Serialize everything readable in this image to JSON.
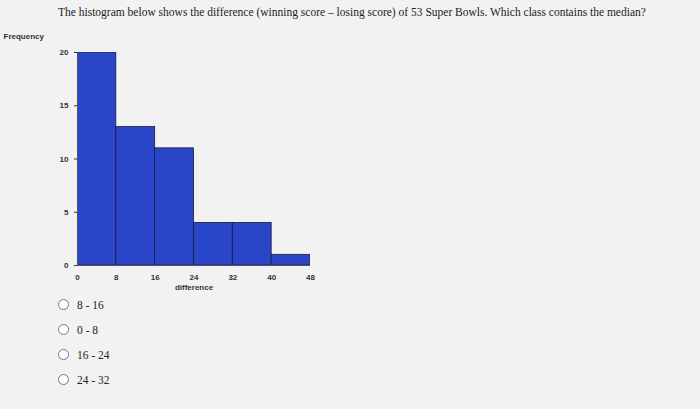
{
  "question": "The histogram below shows the difference (winning score – losing score) of 53 Super Bowls.  Which class contains the median?",
  "chart_data": {
    "type": "histogram",
    "bins": [
      0,
      8,
      16,
      24,
      32,
      40,
      48
    ],
    "counts": [
      20,
      13,
      11,
      4,
      4,
      1
    ],
    "color": "#2a46c8",
    "x_label": "difference",
    "y_label": "Frequency",
    "xlim": [
      0,
      48
    ],
    "ylim": [
      0,
      20
    ],
    "xticks": [
      0,
      8,
      16,
      24,
      32,
      40,
      48
    ],
    "yticks": [
      0,
      5,
      10,
      15,
      20
    ]
  },
  "options": [
    "8 - 16",
    "0 - 8",
    "16 - 24",
    "24 - 32"
  ]
}
